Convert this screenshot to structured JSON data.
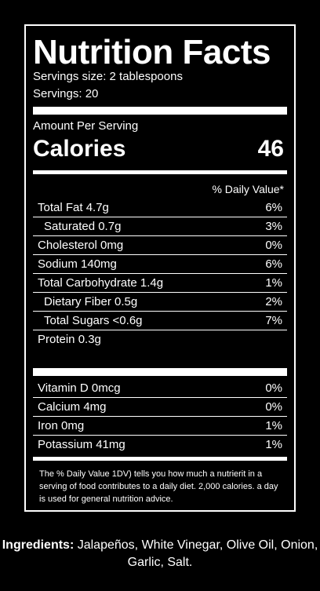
{
  "label": {
    "title": "Nutrition Facts",
    "serving_size": "Servings size: 2 tablespoons",
    "servings": "Servings: 20",
    "amount_per_serving": "Amount Per Serving",
    "calories_label": "Calories",
    "calories_value": "46",
    "daily_value_header": "% Daily Value*",
    "nutrients": [
      {
        "name": "Total Fat 4.7g",
        "pct": "6%"
      },
      {
        "name": "Saturated 0.7g",
        "pct": "3%"
      },
      {
        "name": "Cholesterol 0mg",
        "pct": "0%"
      },
      {
        "name": "Sodium 140mg",
        "pct": "6%"
      },
      {
        "name": "Total Carbohydrate 1.4g",
        "pct": "1%"
      },
      {
        "name": "Dietary Fiber 0.5g",
        "pct": "2%"
      },
      {
        "name": "Total Sugars <0.6g",
        "pct": "7%"
      },
      {
        "name": "Protein 0.3g",
        "pct": ""
      }
    ],
    "vitamins": [
      {
        "name": "Vitamin D  0mcg",
        "pct": "0%"
      },
      {
        "name": "Calcium  4mg",
        "pct": "0%"
      },
      {
        "name": "Iron 0mg",
        "pct": "1%"
      },
      {
        "name": "Potassium  41mg",
        "pct": "1%"
      }
    ],
    "footnote": "The % Daily Value 1DV) tells you how much a nutrierit in a serving of food contributes to a daily diet. 2,000 calories. a day is used for general nutrition advice."
  },
  "ingredients": {
    "label": "Ingredients:",
    "text": " Jalapeños, White Vinegar, Olive Oil, Onion, Garlic, Salt."
  }
}
